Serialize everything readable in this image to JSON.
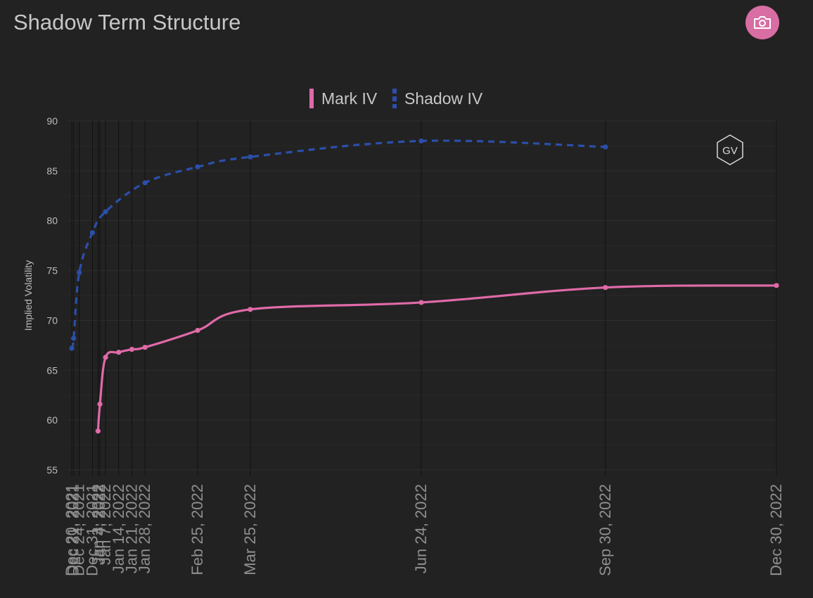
{
  "header": {
    "title": "Shadow Term Structure",
    "camera_icon": "camera-icon"
  },
  "watermark": {
    "text": "GV"
  },
  "colors": {
    "background": "#222222",
    "mark_iv": "#e06aa8",
    "shadow_iv": "#2b4faa",
    "grid": "#333333",
    "accent_button": "#d86ea3"
  },
  "chart_data": {
    "type": "line",
    "ylabel": "Implied Volatility",
    "xlabel": "",
    "ylim": [
      55,
      90
    ],
    "yticks": [
      55,
      60,
      65,
      70,
      75,
      80,
      85,
      90
    ],
    "x_axis_type": "date",
    "xlim": [
      "2021-12-20",
      "2022-12-30"
    ],
    "grid": true,
    "legend_position": "top-center",
    "xticks": [
      {
        "date": "2021-12-20",
        "label": "Dec 20, 2021"
      },
      {
        "date": "2021-12-21",
        "label": "Dec 21, 2021"
      },
      {
        "date": "2021-12-24",
        "label": "Dec 24, 2021"
      },
      {
        "date": "2021-12-31",
        "label": "Dec 31, 2021"
      },
      {
        "date": "2022-01-03",
        "label": "Jan 3, 2022"
      },
      {
        "date": "2022-01-04",
        "label": "Jan 4, 2022"
      },
      {
        "date": "2022-01-07",
        "label": "Jan 7, 2022"
      },
      {
        "date": "2022-01-14",
        "label": "Jan 14, 2022"
      },
      {
        "date": "2022-01-21",
        "label": "Jan 21, 2022"
      },
      {
        "date": "2022-01-28",
        "label": "Jan 28, 2022"
      },
      {
        "date": "2022-02-25",
        "label": "Feb 25, 2022"
      },
      {
        "date": "2022-03-25",
        "label": "Mar 25, 2022"
      },
      {
        "date": "2022-06-24",
        "label": "Jun 24, 2022"
      },
      {
        "date": "2022-09-30",
        "label": "Sep 30, 2022"
      },
      {
        "date": "2022-12-30",
        "label": "Dec 30, 2022"
      }
    ],
    "series": [
      {
        "name": "Mark IV",
        "style": "solid",
        "points": [
          {
            "x": "2022-01-03",
            "y": 58.9
          },
          {
            "x": "2022-01-04",
            "y": 61.6
          },
          {
            "x": "2022-01-07",
            "y": 66.3
          },
          {
            "x": "2022-01-14",
            "y": 66.8
          },
          {
            "x": "2022-01-21",
            "y": 67.1
          },
          {
            "x": "2022-01-28",
            "y": 67.3
          },
          {
            "x": "2022-02-25",
            "y": 69.0
          },
          {
            "x": "2022-03-25",
            "y": 71.1
          },
          {
            "x": "2022-06-24",
            "y": 71.8
          },
          {
            "x": "2022-09-30",
            "y": 73.3
          },
          {
            "x": "2022-12-30",
            "y": 73.5
          }
        ]
      },
      {
        "name": "Shadow IV",
        "style": "dashed",
        "points": [
          {
            "x": "2021-12-20",
            "y": 67.2
          },
          {
            "x": "2021-12-21",
            "y": 68.2
          },
          {
            "x": "2021-12-24",
            "y": 74.8
          },
          {
            "x": "2021-12-31",
            "y": 78.8
          },
          {
            "x": "2022-01-07",
            "y": 80.9
          },
          {
            "x": "2022-01-28",
            "y": 83.8
          },
          {
            "x": "2022-02-25",
            "y": 85.4
          },
          {
            "x": "2022-03-25",
            "y": 86.4
          },
          {
            "x": "2022-06-24",
            "y": 88.0
          },
          {
            "x": "2022-09-30",
            "y": 87.4
          }
        ]
      }
    ]
  }
}
